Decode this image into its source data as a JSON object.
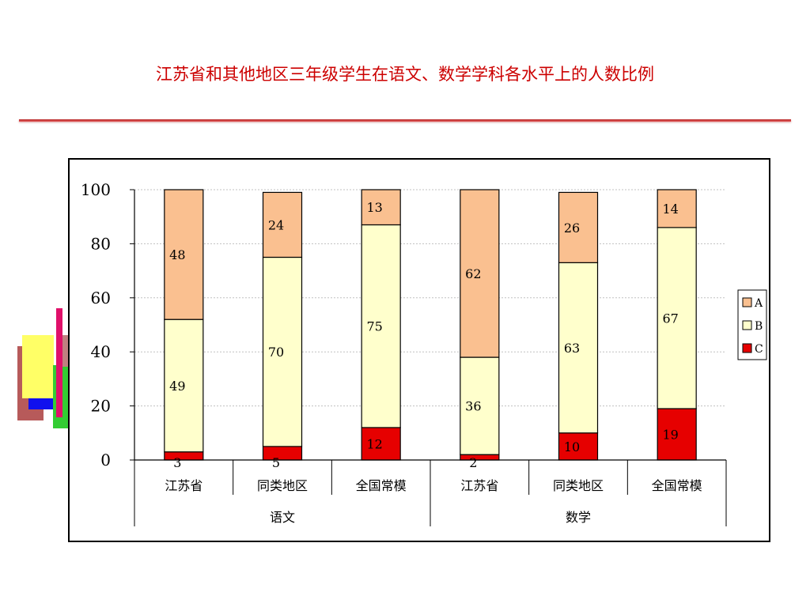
{
  "slide": {
    "title": "江苏省和其他地区三年级学生在语文、数学学科各水平上的人数比例"
  },
  "colors": {
    "title": "#cc0000",
    "A": "#fac090",
    "B": "#ffffcc",
    "C": "#e60000"
  },
  "chart_data": {
    "type": "bar",
    "stacked": true,
    "title": "",
    "xlabel": "",
    "ylabel": "",
    "ylim": [
      0,
      100
    ],
    "yticks": [
      0,
      20,
      40,
      60,
      80,
      100
    ],
    "grid": true,
    "legend": "right",
    "groups": [
      {
        "label": "语文",
        "categories": [
          "江苏省",
          "同类地区",
          "全国常模"
        ]
      },
      {
        "label": "数学",
        "categories": [
          "江苏省",
          "同类地区",
          "全国常模"
        ]
      }
    ],
    "categories": [
      "江苏省",
      "同类地区",
      "全国常模",
      "江苏省",
      "同类地区",
      "全国常模"
    ],
    "series": [
      {
        "name": "C",
        "values": [
          3,
          5,
          12,
          2,
          10,
          19
        ]
      },
      {
        "name": "B",
        "values": [
          49,
          70,
          75,
          36,
          63,
          67
        ]
      },
      {
        "name": "A",
        "values": [
          48,
          24,
          13,
          62,
          26,
          14
        ]
      }
    ]
  }
}
